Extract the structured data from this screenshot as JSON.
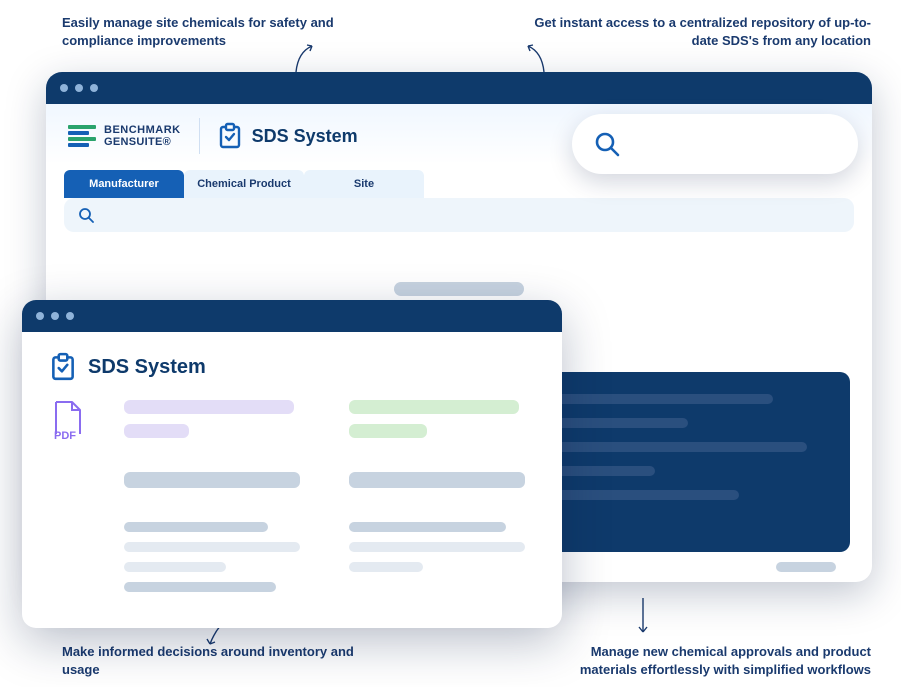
{
  "callouts": {
    "tl": "Easily manage site chemicals for safety and compliance improvements",
    "tr": "Get instant access to a centralized repository of up-to-date SDS's from any location",
    "bl": "Make informed decisions around inventory and usage",
    "br": "Manage new chemical approvals and product materials effortlessly with simplified workflows"
  },
  "brand": {
    "line1": "BENCHMARK",
    "line2": "GENSUITE®"
  },
  "back_window": {
    "titlebar_color": "#0e3a6b",
    "system_label": "SDS System",
    "tabs": [
      {
        "label": "Manufacturer",
        "active": true
      },
      {
        "label": "Chemical Product",
        "active": false
      },
      {
        "label": "Site",
        "active": false
      }
    ],
    "tab_active_bg": "#1560b5",
    "tab_inactive_bg": "#e9f3fc",
    "filter_bg": "#eef5fb",
    "dark_panel_bg": "#0e3a6b",
    "dark_line_color": "#2a4f7e",
    "dark_panel": {
      "col1_widths": [
        0.95,
        0.8,
        0.7,
        0.9
      ],
      "col2_widths": [
        0.85,
        0.6,
        0.95,
        0.5,
        0.75
      ]
    }
  },
  "front_window": {
    "system_label": "SDS System",
    "pdf_label": "PDF",
    "colors": {
      "purple": "#e3ddf7",
      "green": "#d4eed2",
      "grey": "#c7d3e0",
      "lgrey": "#e4eaf1",
      "title": "#0e3a6b",
      "pdf": "#8a6cf0"
    },
    "left_col": [
      {
        "color": "purple",
        "w": 0.92,
        "h": 14
      },
      {
        "color": "purple",
        "w": 0.35,
        "h": 14
      },
      {
        "spacer": true
      },
      {
        "color": "grey",
        "w": 0.95,
        "h": 16
      },
      {
        "spacer": true
      },
      {
        "color": "grey",
        "w": 0.78,
        "h": 10
      },
      {
        "color": "lgrey",
        "w": 0.95,
        "h": 10
      },
      {
        "color": "lgrey",
        "w": 0.55,
        "h": 10
      },
      {
        "color": "grey",
        "w": 0.82,
        "h": 10
      }
    ],
    "right_col": [
      {
        "color": "green",
        "w": 0.92,
        "h": 14
      },
      {
        "color": "green",
        "w": 0.42,
        "h": 14
      },
      {
        "spacer": true
      },
      {
        "color": "grey",
        "w": 0.95,
        "h": 16
      },
      {
        "spacer": true
      },
      {
        "color": "grey",
        "w": 0.85,
        "h": 10
      },
      {
        "color": "lgrey",
        "w": 0.95,
        "h": 10
      },
      {
        "color": "lgrey",
        "w": 0.4,
        "h": 10
      }
    ]
  },
  "colors": {
    "callout_text": "#1a3a6e",
    "arrow": "#1a3a6e",
    "search_icon": "#1560b5"
  }
}
